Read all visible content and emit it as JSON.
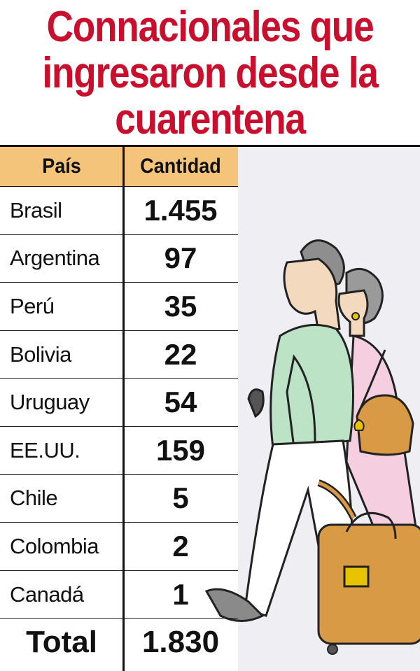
{
  "chart_data": {
    "type": "table",
    "title": "Connacionales que ingresaron desde la cuarentena",
    "columns": [
      "País",
      "Cantidad"
    ],
    "rows": [
      {
        "country": "Brasil",
        "value": "1.455"
      },
      {
        "country": "Argentina",
        "value": "97"
      },
      {
        "country": "Perú",
        "value": "35"
      },
      {
        "country": "Bolivia",
        "value": "22"
      },
      {
        "country": "Uruguay",
        "value": "54"
      },
      {
        "country": "EE.UU.",
        "value": "159"
      },
      {
        "country": "Chile",
        "value": "5"
      },
      {
        "country": "Colombia",
        "value": "2"
      },
      {
        "country": "Canadá",
        "value": "1"
      }
    ],
    "total": {
      "label": "Total",
      "value": "1.830"
    }
  },
  "colors": {
    "title": "#c8102e",
    "header_bg": "#f4c47b",
    "illustration_bg": "#efeff3"
  },
  "illustration": "elderly-couple-travelers-icon"
}
